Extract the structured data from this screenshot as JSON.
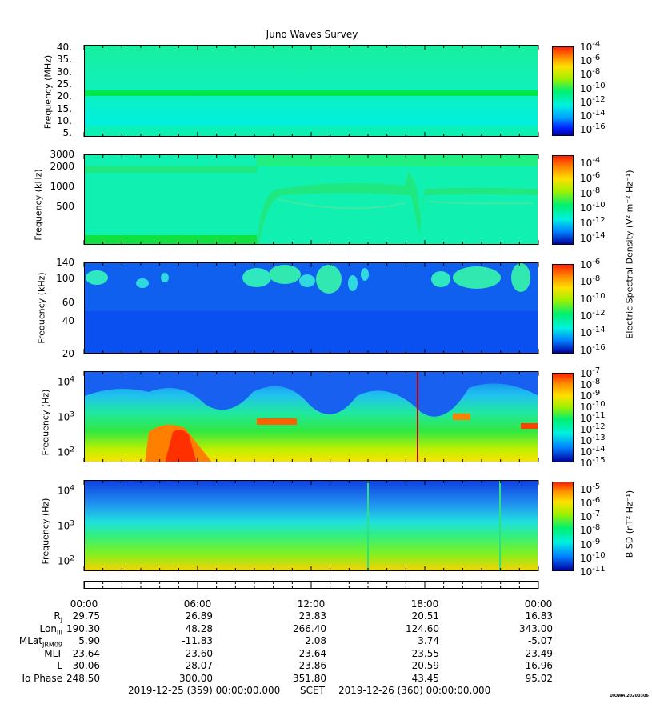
{
  "title": "Juno Waves Survey",
  "chart_data": {
    "type": "heatmap",
    "title": "Juno Waves Survey",
    "time_range": [
      "2019-12-25 (359) 00:00:00.000",
      "2019-12-26 (360) 00:00:00.000"
    ],
    "x_ticks": [
      "00:00",
      "06:00",
      "12:00",
      "18:00",
      "00:00"
    ],
    "panels": [
      {
        "ylabel": "Frequency (MHz)",
        "yticks": [
          "40.",
          "35.",
          "30.",
          "25.",
          "20.",
          "15.",
          "10.",
          "5."
        ],
        "ylim": [
          3.5,
          41
        ],
        "scale": "linear",
        "colorbar": {
          "labels": [
            "10-4",
            "10-6",
            "10-8",
            "10-10",
            "10-12",
            "10-14",
            "10-16"
          ],
          "exponents": [
            "-4",
            "-6",
            "-8",
            "-10",
            "-12",
            "-14",
            "-16"
          ],
          "range": [
            -17,
            -4
          ]
        },
        "features": [
          "band near 21 MHz"
        ]
      },
      {
        "ylabel": "Frequency (kHz)",
        "yticks": [
          "3000",
          "2000",
          "1000",
          "500"
        ],
        "ylim": [
          130,
          3000
        ],
        "scale": "log",
        "colorbar": {
          "exponents": [
            "-4",
            "-6",
            "-8",
            "-10",
            "-12",
            "-14"
          ],
          "range": [
            -15,
            -3
          ]
        }
      },
      {
        "ylabel": "Frequency (kHz)",
        "yticks": [
          "140",
          "100",
          "60",
          "40",
          "20"
        ],
        "ylim": [
          20,
          140
        ],
        "scale": "log",
        "colorbar": {
          "exponents": [
            "-6",
            "-8",
            "-10",
            "-12",
            "-14",
            "-16"
          ],
          "range": [
            -16.5,
            -6
          ]
        }
      },
      {
        "ylabel": "Frequency (Hz)",
        "yticks_base": [
          "10",
          "10",
          "10"
        ],
        "yticks_exp": [
          "4",
          "3",
          "2"
        ],
        "ylim": [
          50,
          20000
        ],
        "scale": "log",
        "colorbar": {
          "exponents": [
            "-7",
            "-8",
            "-9",
            "-10",
            "-11",
            "-12",
            "-13",
            "-14",
            "-15"
          ],
          "range": [
            -15,
            -7
          ]
        }
      },
      {
        "ylabel": "Frequency (Hz)",
        "yticks_base": [
          "10",
          "10",
          "10"
        ],
        "yticks_exp": [
          "4",
          "3",
          "2"
        ],
        "ylim": [
          50,
          20000
        ],
        "scale": "log",
        "colorbar": {
          "exponents": [
            "-5",
            "-6",
            "-7",
            "-8",
            "-9",
            "-10",
            "-11"
          ],
          "range": [
            -11,
            -4.5
          ]
        }
      }
    ],
    "colorbar_titles": {
      "electric": "Electric Spectral Density (V² m⁻² Hz⁻¹)",
      "magnetic": "B SD (nT² Hz⁻¹)"
    }
  },
  "ephemeris": {
    "rows": [
      {
        "label": "R",
        "sub": "j",
        "values": [
          "29.75",
          "26.89",
          "23.83",
          "20.51",
          "16.83"
        ]
      },
      {
        "label": "Lon",
        "sub": "III",
        "values": [
          "190.30",
          "48.28",
          "266.40",
          "124.60",
          "343.00"
        ]
      },
      {
        "label": "MLat",
        "sub": "JRM09",
        "values": [
          "5.90",
          "-11.83",
          "2.08",
          "3.74",
          "-5.07"
        ]
      },
      {
        "label": "MLT",
        "sub": "",
        "values": [
          "23.64",
          "23.60",
          "23.64",
          "23.55",
          "23.49"
        ]
      },
      {
        "label": "L",
        "sub": "",
        "values": [
          "30.06",
          "28.07",
          "23.86",
          "20.59",
          "16.96"
        ]
      },
      {
        "label": "Io Phase",
        "sub": "",
        "values": [
          "248.50",
          "300.00",
          "351.80",
          "43.45",
          "95.02"
        ]
      }
    ]
  },
  "footer": {
    "start": "2019-12-25 (359) 00:00:00.000",
    "scet": "SCET",
    "end": "2019-12-26 (360) 00:00:00.000"
  },
  "credit": "UIOWA 20200306",
  "ten": "10",
  "colors": {
    "low": "#0000c8",
    "mid": "#00ff70",
    "high": "#ff2000"
  }
}
